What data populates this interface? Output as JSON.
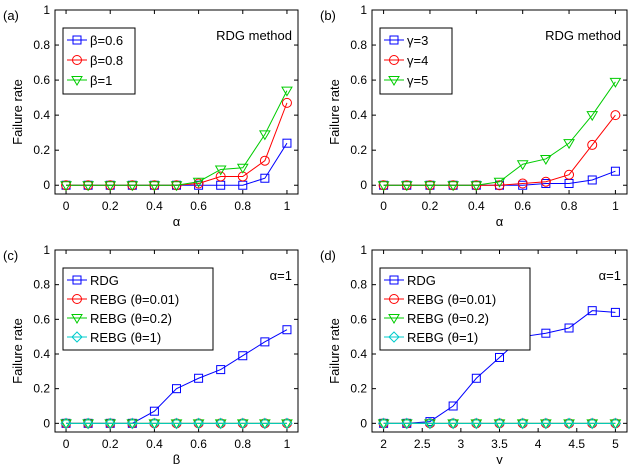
{
  "chart_data": [
    {
      "panel_label": "(a)",
      "type": "line",
      "xlabel": "α",
      "ylabel": "Failure rate",
      "xlim": [
        -0.05,
        1.05
      ],
      "ylim": [
        -0.05,
        1
      ],
      "xticks": [
        "0",
        "0.2",
        "0.4",
        "0.6",
        "0.8",
        "1"
      ],
      "xtick_values": [
        0,
        0.2,
        0.4,
        0.6,
        0.8,
        1
      ],
      "yticks": [
        "0",
        "0.2",
        "0.4",
        "0.6",
        "0.8",
        "1"
      ],
      "ytick_values": [
        0,
        0.2,
        0.4,
        0.6,
        0.8,
        1
      ],
      "annotation": "RDG method",
      "legend_position": "top-left",
      "x": [
        0,
        0.1,
        0.2,
        0.3,
        0.4,
        0.5,
        0.6,
        0.7,
        0.8,
        0.9,
        1
      ],
      "series": [
        {
          "name": "β=0.6",
          "color": "#0000ff",
          "marker": "square",
          "values": [
            0,
            0,
            0,
            0,
            0,
            0,
            0,
            0,
            0,
            0.04,
            0.24
          ]
        },
        {
          "name": "β=0.8",
          "color": "#ff0000",
          "marker": "circle",
          "values": [
            0,
            0,
            0,
            0,
            0,
            0,
            0.01,
            0.05,
            0.05,
            0.14,
            0.47
          ]
        },
        {
          "name": "β=1",
          "color": "#00cc00",
          "marker": "triangle-down",
          "values": [
            0,
            0,
            0,
            0,
            0,
            0,
            0.02,
            0.09,
            0.1,
            0.29,
            0.54
          ]
        }
      ]
    },
    {
      "panel_label": "(b)",
      "type": "line",
      "xlabel": "α",
      "ylabel": "Failure rate",
      "xlim": [
        -0.05,
        1.05
      ],
      "ylim": [
        -0.05,
        1
      ],
      "xticks": [
        "0",
        "0.2",
        "0.4",
        "0.6",
        "0.8",
        "1"
      ],
      "xtick_values": [
        0,
        0.2,
        0.4,
        0.6,
        0.8,
        1
      ],
      "yticks": [
        "0",
        "0.2",
        "0.4",
        "0.6",
        "0.8",
        "1"
      ],
      "ytick_values": [
        0,
        0.2,
        0.4,
        0.6,
        0.8,
        1
      ],
      "annotation": "RDG method",
      "legend_position": "top-left",
      "x": [
        0,
        0.1,
        0.2,
        0.3,
        0.4,
        0.5,
        0.6,
        0.7,
        0.8,
        0.9,
        1
      ],
      "series": [
        {
          "name": "γ=3",
          "color": "#0000ff",
          "marker": "square",
          "values": [
            0,
            0,
            0,
            0,
            0,
            0,
            0,
            0.01,
            0.01,
            0.03,
            0.08
          ]
        },
        {
          "name": "γ=4",
          "color": "#ff0000",
          "marker": "circle",
          "values": [
            0,
            0,
            0,
            0,
            0,
            0,
            0.01,
            0.02,
            0.06,
            0.23,
            0.4
          ]
        },
        {
          "name": "γ=5",
          "color": "#00cc00",
          "marker": "triangle-down",
          "values": [
            0,
            0,
            0,
            0,
            0,
            0.02,
            0.12,
            0.15,
            0.24,
            0.4,
            0.59
          ]
        }
      ]
    },
    {
      "panel_label": "(c)",
      "type": "line",
      "xlabel": "β",
      "ylabel": "Failure rate",
      "xlim": [
        -0.05,
        1.05
      ],
      "ylim": [
        -0.05,
        1
      ],
      "xticks": [
        "0",
        "0.2",
        "0.4",
        "0.6",
        "0.8",
        "1"
      ],
      "xtick_values": [
        0,
        0.2,
        0.4,
        0.6,
        0.8,
        1
      ],
      "yticks": [
        "0",
        "0.2",
        "0.4",
        "0.6",
        "0.8",
        "1"
      ],
      "ytick_values": [
        0,
        0.2,
        0.4,
        0.6,
        0.8,
        1
      ],
      "annotation": "α=1",
      "legend_position": "top-left",
      "x": [
        0,
        0.1,
        0.2,
        0.3,
        0.4,
        0.5,
        0.6,
        0.7,
        0.8,
        0.9,
        1
      ],
      "series": [
        {
          "name": "RDG",
          "color": "#0000ff",
          "marker": "square",
          "values": [
            0,
            0,
            0,
            0,
            0.07,
            0.2,
            0.26,
            0.31,
            0.39,
            0.47,
            0.54
          ]
        },
        {
          "name": "REBG (θ=0.01)",
          "color": "#ff0000",
          "marker": "circle",
          "values": [
            0,
            0,
            0,
            0,
            0,
            0,
            0,
            0,
            0,
            0,
            0
          ]
        },
        {
          "name": "REBG (θ=0.2)",
          "color": "#00cc00",
          "marker": "triangle-down",
          "values": [
            0,
            0,
            0,
            0,
            0,
            0,
            0,
            0,
            0,
            0,
            0
          ]
        },
        {
          "name": "REBG (θ=1)",
          "color": "#00cccc",
          "marker": "diamond",
          "values": [
            0,
            0,
            0,
            0,
            0,
            0,
            0,
            0,
            0,
            0,
            0
          ]
        }
      ]
    },
    {
      "panel_label": "(d)",
      "type": "line",
      "xlabel": "γ",
      "ylabel": "Failure rate",
      "xlim": [
        1.85,
        5.15
      ],
      "ylim": [
        -0.05,
        1
      ],
      "xticks": [
        "2",
        "2.5",
        "3",
        "3.5",
        "4",
        "4.5",
        "5"
      ],
      "xtick_values": [
        2,
        2.5,
        3,
        3.5,
        4,
        4.5,
        5
      ],
      "yticks": [
        "0",
        "0.2",
        "0.4",
        "0.6",
        "0.8",
        "1"
      ],
      "ytick_values": [
        0,
        0.2,
        0.4,
        0.6,
        0.8,
        1
      ],
      "annotation": "α=1",
      "legend_position": "top-left",
      "x": [
        2,
        2.3,
        2.6,
        2.9,
        3.2,
        3.5,
        3.8,
        4.1,
        4.4,
        4.7,
        5
      ],
      "series": [
        {
          "name": "RDG",
          "color": "#0000ff",
          "marker": "square",
          "values": [
            0,
            0,
            0.01,
            0.1,
            0.26,
            0.38,
            0.5,
            0.52,
            0.55,
            0.65,
            0.64
          ]
        },
        {
          "name": "REBG (θ=0.01)",
          "color": "#ff0000",
          "marker": "circle",
          "values": [
            0,
            0,
            0,
            0,
            0,
            0,
            0,
            0,
            0,
            0,
            0
          ]
        },
        {
          "name": "REBG (θ=0.2)",
          "color": "#00cc00",
          "marker": "triangle-down",
          "values": [
            0,
            0,
            0,
            0,
            0,
            0,
            0,
            0,
            0,
            0,
            0
          ]
        },
        {
          "name": "REBG (θ=1)",
          "color": "#00cccc",
          "marker": "diamond",
          "values": [
            0,
            0,
            0,
            0,
            0,
            0,
            0,
            0,
            0,
            0,
            0
          ]
        }
      ]
    }
  ]
}
